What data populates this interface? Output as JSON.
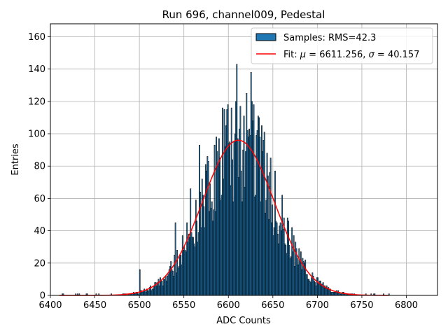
{
  "chart_data": {
    "type": "bar",
    "title": "Run 696, channel009, Pedestal",
    "xlabel": "ADC Counts",
    "ylabel": "Entries",
    "xlim": [
      6400,
      6835
    ],
    "ylim": [
      0,
      168
    ],
    "xticks": [
      6400,
      6450,
      6500,
      6550,
      6600,
      6650,
      6700,
      6750,
      6800
    ],
    "yticks": [
      0,
      20,
      40,
      60,
      80,
      100,
      120,
      140,
      160
    ],
    "grid": true,
    "legend_position": "top-right",
    "bin_width": 1,
    "histogram": {
      "name": "Samples: RMS=42.3",
      "color": "#1f77b4",
      "edgecolor": "#000000",
      "notable_bins": [
        {
          "x": 6609,
          "count": 143
        },
        {
          "x": 6598,
          "count": 115
        },
        {
          "x": 6620,
          "count": 125
        },
        {
          "x": 6625,
          "count": 138
        },
        {
          "x": 6640,
          "count": 101
        },
        {
          "x": 6567,
          "count": 93
        },
        {
          "x": 6557,
          "count": 66
        },
        {
          "x": 6540,
          "count": 45
        },
        {
          "x": 6500,
          "count": 16
        },
        {
          "x": 6660,
          "count": 62
        },
        {
          "x": 6670,
          "count": 24
        },
        {
          "x": 6780,
          "count": 1
        }
      ]
    },
    "fit": {
      "label_prefix": "Fit: ",
      "label_mu_symbol": "μ",
      "label_sigma_symbol": "σ",
      "mu": 6611.256,
      "sigma": 40.157,
      "amplitude": 96,
      "x_range": [
        6410,
        6780
      ],
      "color": "#ff0000"
    }
  }
}
